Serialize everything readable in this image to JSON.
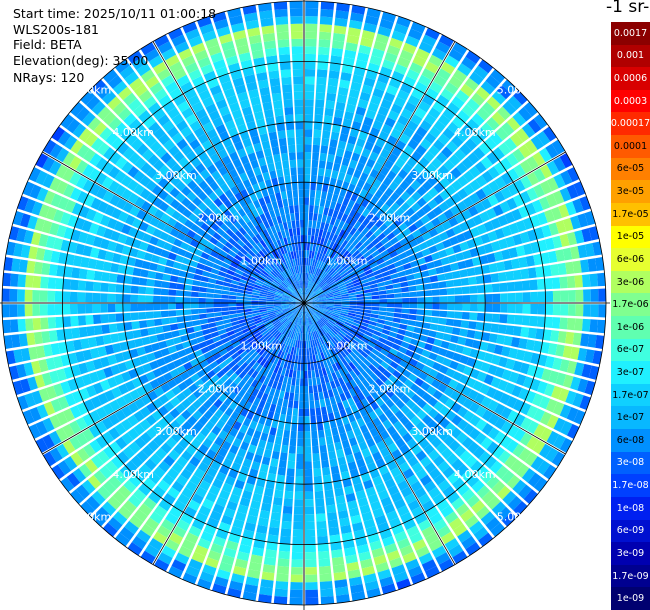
{
  "chart_data": {
    "type": "heatmap",
    "plot_kind": "PPI polar scan",
    "info": {
      "start_time": "Start time: 2025/10/11 01:00:18",
      "instrument": "WLS200s-181",
      "field": "Field: BETA",
      "elevation": "Elevation(deg): 35.00",
      "nrays": "NRays: 120"
    },
    "colorbar_title": "-1 sr-",
    "range_rings_km": [
      1,
      2,
      3,
      4,
      5
    ],
    "range_labels": [
      "1.00km",
      "2.00km",
      "3.00km",
      "4.00km",
      "5.00km"
    ],
    "spokes_deg": [
      0,
      30,
      60,
      90,
      120,
      150,
      180,
      210,
      240,
      270,
      300,
      330
    ],
    "max_range_km": 5.0,
    "n_rays": 120,
    "colorbar": {
      "scale": "log",
      "ticks": [
        "0.0017",
        "0.001",
        "0.0006",
        "0.0003",
        "0.00017",
        "0.0001",
        "6e-05",
        "3e-05",
        "1.7e-05",
        "1e-05",
        "6e-06",
        "3e-06",
        "1.7e-06",
        "1e-06",
        "6e-07",
        "3e-07",
        "1.7e-07",
        "1e-07",
        "6e-08",
        "3e-08",
        "1.7e-08",
        "1e-08",
        "6e-09",
        "3e-09",
        "1.7e-09",
        "1e-09"
      ],
      "colors": [
        "#8b0000",
        "#b00000",
        "#d80000",
        "#ff0000",
        "#ff2a00",
        "#ff5a00",
        "#ff8000",
        "#ffa000",
        "#ffc000",
        "#ffff00",
        "#e6ff30",
        "#b0ff60",
        "#80ff90",
        "#60ffb0",
        "#40ffe0",
        "#20f0ff",
        "#10d0ff",
        "#08b8ff",
        "#0090ff",
        "#0060ff",
        "#0040ff",
        "#0020f0",
        "#0010d0",
        "#0000b0",
        "#000090",
        "#000070"
      ]
    },
    "range_profile": [
      {
        "r": 0.0,
        "value": 6e-08
      },
      {
        "r": 1.0,
        "value": 3e-08
      },
      {
        "r": 2.0,
        "value": 6e-08
      },
      {
        "r": 3.0,
        "value": 1e-07
      },
      {
        "r": 4.0,
        "value": 1.7e-07
      },
      {
        "r": 4.55,
        "value": 3e-06
      },
      {
        "r": 4.7,
        "value": 1e-07
      },
      {
        "r": 5.0,
        "value": 3e-08
      }
    ]
  }
}
